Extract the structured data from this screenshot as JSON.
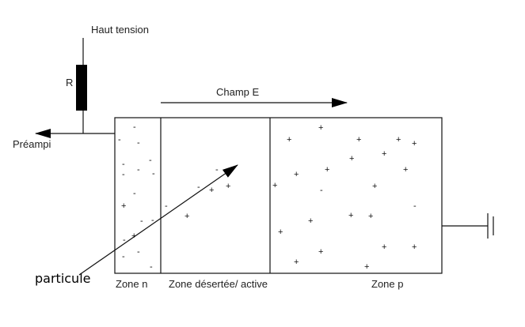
{
  "labels": {
    "high_voltage": "Haut tension",
    "resistor": "R",
    "preamp": "Préampi",
    "field": "Champ E",
    "particle": "particule",
    "zone_n": "Zone n",
    "zone_depleted": "Zone désertée/ active",
    "zone_p": "Zone p"
  },
  "symbols": {
    "minus": "-",
    "plus": "+"
  },
  "colors": {
    "line": "#111111",
    "resistor": "#000000",
    "text": "#222222",
    "background": "#ffffff"
  }
}
